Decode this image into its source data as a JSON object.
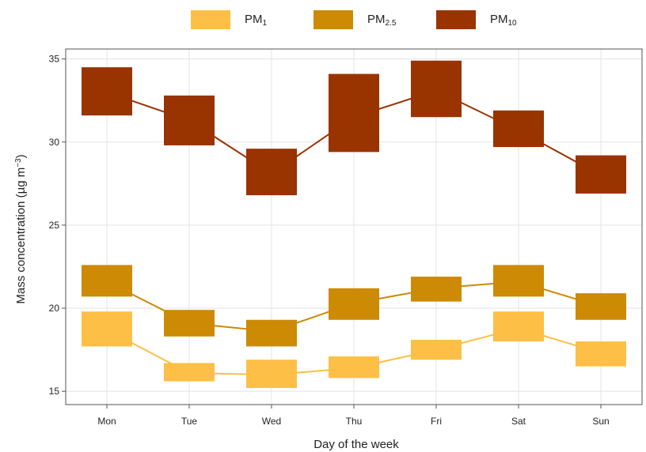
{
  "legend": [
    {
      "base": "PM",
      "sub": "1",
      "color": "#FDBF45"
    },
    {
      "base": "PM",
      "sub": "2.5",
      "color": "#CC8A05"
    },
    {
      "base": "PM",
      "sub": "10",
      "color": "#993300"
    }
  ],
  "chart_data": {
    "type": "line",
    "xlabel": "Day of the week",
    "ylabel_html": "Mass concentration (µg m<tspan baseline-shift=\"super\" font-size=\"10\">−3</tspan>)",
    "categories": [
      "Mon",
      "Tue",
      "Wed",
      "Thu",
      "Fri",
      "Sat",
      "Sun"
    ],
    "yticks": [
      15,
      20,
      25,
      30,
      35
    ],
    "ylim": [
      14.2,
      35.6
    ],
    "grid": true,
    "legend_position": "top",
    "series": [
      {
        "name": "PM1",
        "color": "#FDBF45",
        "mean": [
          18.7,
          16.1,
          16.0,
          16.4,
          17.5,
          18.8,
          17.3
        ],
        "lower": [
          17.7,
          15.6,
          15.2,
          15.8,
          16.9,
          18.0,
          16.5
        ],
        "upper": [
          19.8,
          16.7,
          16.9,
          17.1,
          18.1,
          19.8,
          18.0
        ]
      },
      {
        "name": "PM2.5",
        "color": "#CC8A05",
        "mean": [
          21.6,
          19.1,
          18.6,
          20.3,
          21.2,
          21.6,
          20.1
        ],
        "lower": [
          20.7,
          18.3,
          17.7,
          19.3,
          20.4,
          20.7,
          19.3
        ],
        "upper": [
          22.6,
          19.9,
          19.3,
          21.2,
          21.9,
          22.6,
          20.9
        ]
      },
      {
        "name": "PM10",
        "color": "#993300",
        "mean": [
          33.0,
          31.3,
          28.1,
          31.5,
          33.1,
          30.7,
          28.0
        ],
        "lower": [
          31.6,
          29.8,
          26.8,
          29.4,
          31.5,
          29.7,
          26.9
        ],
        "upper": [
          34.5,
          32.8,
          29.6,
          34.1,
          34.9,
          31.9,
          29.2
        ]
      }
    ]
  }
}
